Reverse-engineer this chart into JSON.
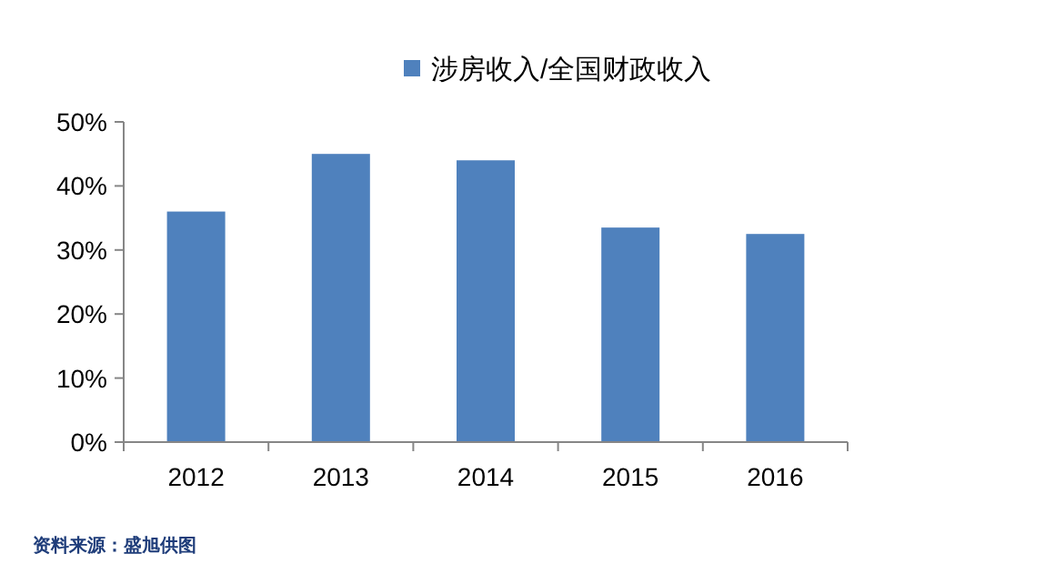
{
  "chart_data": {
    "type": "bar",
    "categories": [
      "2012",
      "2013",
      "2014",
      "2015",
      "2016"
    ],
    "series": [
      {
        "name": "涉房收入/全国财政收入",
        "color": "#4f81bd",
        "values": [
          36,
          45,
          44,
          33.5,
          32.5
        ]
      }
    ],
    "ylim": [
      0,
      50
    ],
    "yticks": [
      {
        "value": 0,
        "label": "0%"
      },
      {
        "value": 10,
        "label": "10%"
      },
      {
        "value": 20,
        "label": "20%"
      },
      {
        "value": 30,
        "label": "30%"
      },
      {
        "value": 40,
        "label": "40%"
      },
      {
        "value": 50,
        "label": "50%"
      }
    ],
    "legend": "top",
    "grid": false,
    "annotations": [
      "资料来源：盛旭供图"
    ]
  }
}
